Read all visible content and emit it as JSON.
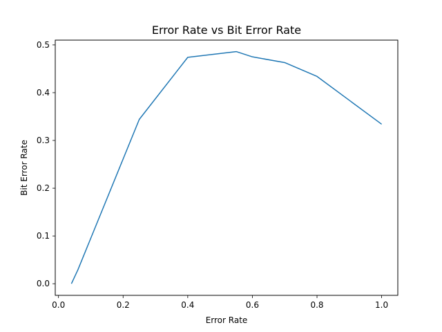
{
  "chart_data": {
    "type": "line",
    "title": "Error Rate vs Bit Error Rate",
    "xlabel": "Error Rate",
    "ylabel": "Bit Error Rate",
    "xlim": [
      -0.01,
      1.05
    ],
    "ylim": [
      -0.0243,
      0.51
    ],
    "xticks": [
      0.0,
      0.2,
      0.4,
      0.6,
      0.8,
      1.0
    ],
    "xtick_labels": [
      "0.0",
      "0.2",
      "0.4",
      "0.6",
      "0.8",
      "1.0"
    ],
    "yticks": [
      0.0,
      0.1,
      0.2,
      0.3,
      0.4,
      0.5
    ],
    "ytick_labels": [
      "0.0",
      "0.1",
      "0.2",
      "0.3",
      "0.4",
      "0.5"
    ],
    "grid": false,
    "legend": false,
    "series": [
      {
        "color": "#1f77b4",
        "x": [
          0.04,
          0.06,
          0.25,
          0.4,
          0.55,
          0.6,
          0.7,
          0.8,
          1.0
        ],
        "y": [
          0.0,
          0.029,
          0.344,
          0.474,
          0.486,
          0.475,
          0.463,
          0.434,
          0.334
        ]
      }
    ]
  }
}
